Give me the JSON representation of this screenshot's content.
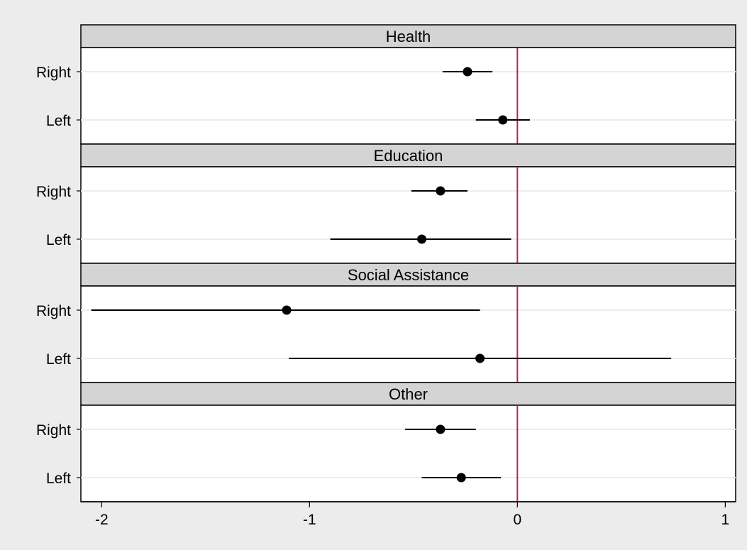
{
  "chart_data": {
    "type": "scatter",
    "subtype": "coefficient-plot-with-confidence-intervals",
    "panels": [
      {
        "title": "Health",
        "rows": [
          {
            "label": "Right",
            "estimate": -0.24,
            "ci": [
              -0.36,
              -0.12
            ]
          },
          {
            "label": "Left",
            "estimate": -0.07,
            "ci": [
              -0.2,
              0.06
            ]
          }
        ]
      },
      {
        "title": "Education",
        "rows": [
          {
            "label": "Right",
            "estimate": -0.37,
            "ci": [
              -0.51,
              -0.24
            ]
          },
          {
            "label": "Left",
            "estimate": -0.46,
            "ci": [
              -0.9,
              -0.03
            ]
          }
        ]
      },
      {
        "title": "Social Assistance",
        "rows": [
          {
            "label": "Right",
            "estimate": -1.11,
            "ci": [
              -2.05,
              -0.18
            ]
          },
          {
            "label": "Left",
            "estimate": -0.18,
            "ci": [
              -1.1,
              0.74
            ]
          }
        ]
      },
      {
        "title": "Other",
        "rows": [
          {
            "label": "Right",
            "estimate": -0.37,
            "ci": [
              -0.54,
              -0.2
            ]
          },
          {
            "label": "Left",
            "estimate": -0.27,
            "ci": [
              -0.46,
              -0.08
            ]
          }
        ]
      }
    ],
    "x_ticks": [
      -2,
      -1,
      0,
      1
    ],
    "x_tick_labels": [
      "-2",
      "-1",
      "0",
      "1"
    ],
    "xlim": [
      -2.1,
      1.05
    ],
    "reference_line": {
      "x": 0,
      "color": "#c0204a"
    },
    "grid": true,
    "legend": "none",
    "colors": {
      "background": "#ececec",
      "panel_background": "#ffffff",
      "strip_background": "#d4d4d4",
      "marker": "#000000",
      "gridline": "#e6eef2"
    }
  }
}
